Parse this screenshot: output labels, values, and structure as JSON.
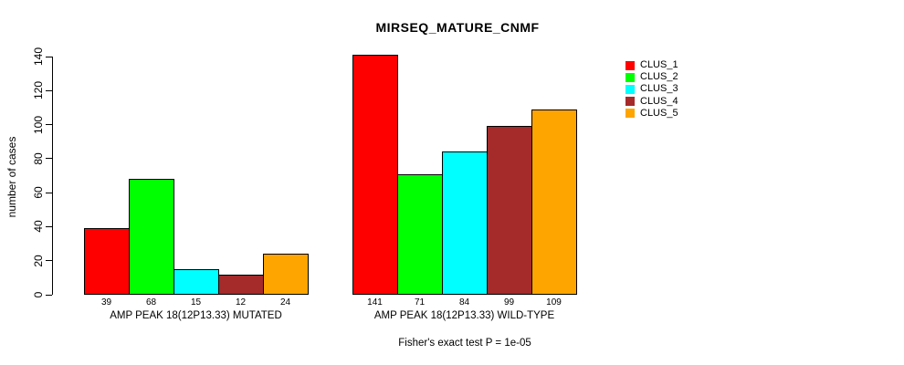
{
  "figure": {
    "background": "#ffffff",
    "text_color": "#000000"
  },
  "chart_data": {
    "type": "bar",
    "title": "MIRSEQ_MATURE_CNMF",
    "ylabel": "number of cases",
    "xlabel": "",
    "ylim": [
      0,
      140
    ],
    "yticks": [
      0,
      20,
      40,
      60,
      80,
      100,
      120,
      140
    ],
    "grid": false,
    "legend_position": "right",
    "series": [
      "CLUS_1",
      "CLUS_2",
      "CLUS_3",
      "CLUS_4",
      "CLUS_5"
    ],
    "series_colors": [
      "#FF0000",
      "#00FF00",
      "#00FFFF",
      "#A52A2A",
      "#FFA500"
    ],
    "groups": [
      {
        "label": "AMP PEAK 18(12P13.33) MUTATED",
        "values": [
          39,
          68,
          15,
          12,
          24
        ]
      },
      {
        "label": "AMP PEAK 18(12P13.33) WILD-TYPE",
        "values": [
          141,
          71,
          84,
          99,
          109
        ]
      }
    ],
    "bar_value_labels": [
      [
        39,
        68,
        15,
        12,
        24
      ],
      [
        141,
        71,
        84,
        99,
        109
      ]
    ],
    "annotation": "Fisher's exact test P = 1e-05"
  }
}
